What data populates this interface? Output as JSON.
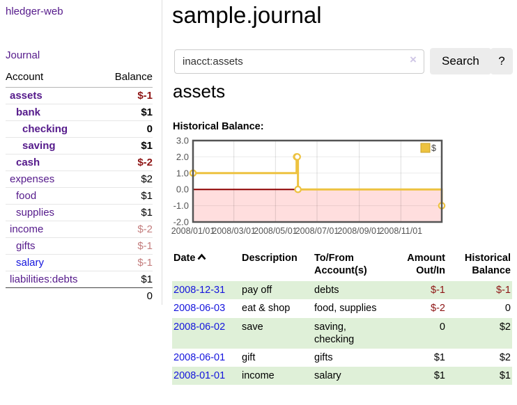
{
  "app": {
    "brand": "hledger-web",
    "nav_journal": "Journal"
  },
  "header": {
    "title": "sample.journal"
  },
  "search": {
    "value": "inacct:assets",
    "clear_icon": "×",
    "button_label": "Search",
    "help_label": "?"
  },
  "account_page": {
    "title": "assets",
    "chart_label": "Historical Balance:"
  },
  "sidebar": {
    "columns": {
      "account": "Account",
      "balance": "Balance"
    },
    "accounts": [
      {
        "name": "assets",
        "depth": 1,
        "bold": true,
        "balance": "$-1",
        "balance_style": "neg"
      },
      {
        "name": "bank",
        "depth": 2,
        "bold": true,
        "balance": "$1",
        "balance_style": "pos"
      },
      {
        "name": "checking",
        "depth": 3,
        "bold": true,
        "balance": "0",
        "balance_style": "pos"
      },
      {
        "name": "saving",
        "depth": 3,
        "bold": true,
        "balance": "$1",
        "balance_style": "pos"
      },
      {
        "name": "cash",
        "depth": 2,
        "bold": true,
        "balance": "$-2",
        "balance_style": "neg"
      },
      {
        "name": "expenses",
        "depth": 1,
        "bold": false,
        "balance": "$2",
        "balance_style": "pos"
      },
      {
        "name": "food",
        "depth": 2,
        "bold": false,
        "balance": "$1",
        "balance_style": "pos"
      },
      {
        "name": "supplies",
        "depth": 2,
        "bold": false,
        "balance": "$1",
        "balance_style": "pos"
      },
      {
        "name": "income",
        "depth": 1,
        "bold": false,
        "balance": "$-2",
        "balance_style": "neg-faded"
      },
      {
        "name": "gifts",
        "depth": 2,
        "bold": false,
        "balance": "$-1",
        "balance_style": "neg-faded"
      },
      {
        "name": "salary",
        "depth": 2,
        "bold": false,
        "balance": "$-1",
        "balance_style": "neg-faded",
        "link_style": "blue"
      },
      {
        "name": "liabilities:debts",
        "depth": 1,
        "bold": false,
        "balance": "$1",
        "balance_style": "pos"
      }
    ],
    "total": "0"
  },
  "chart_data": {
    "type": "line",
    "step": true,
    "title": "Historical Balance:",
    "series": [
      {
        "name": "$",
        "color": "#edc240",
        "points": [
          [
            "2008-01-01",
            1.0
          ],
          [
            "2008-06-01",
            2.0
          ],
          [
            "2008-06-02",
            2.0
          ],
          [
            "2008-06-03",
            0.0
          ],
          [
            "2008-12-31",
            -1.0
          ]
        ]
      }
    ],
    "xlim": [
      "2008-01-01",
      "2008-12-31"
    ],
    "ylim": [
      -2.0,
      3.0
    ],
    "x_ticks": [
      {
        "pos": "2008-01-01",
        "label": "2008/01/01"
      },
      {
        "pos": "2008-03-01",
        "label": "2008/03/01"
      },
      {
        "pos": "2008-05-01",
        "label": "2008/05/01"
      },
      {
        "pos": "2008-07-01",
        "label": "2008/07/01"
      },
      {
        "pos": "2008-09-01",
        "label": "2008/09/01"
      },
      {
        "pos": "2008-11-01",
        "label": "2008/11/01"
      }
    ],
    "y_ticks": [
      {
        "value": 3.0,
        "label": "3.0"
      },
      {
        "value": 2.0,
        "label": "2.0"
      },
      {
        "value": 1.0,
        "label": "1.0"
      },
      {
        "value": 0.0,
        "label": "0.0"
      },
      {
        "value": -1.0,
        "label": "-1.0"
      },
      {
        "value": -2.0,
        "label": "-2.0"
      }
    ],
    "legend": {
      "label": "$",
      "position": "top-right"
    },
    "grid": true,
    "negative_region_color": "#ffdede",
    "zero_line_color": "#8e0000",
    "border_color": "#545454",
    "tick_text_color": "#545454"
  },
  "register": {
    "columns": [
      "Date",
      "Description",
      "To/From Account(s)",
      "Amount Out/In",
      "Historical Balance"
    ],
    "sort_column": "Date",
    "sort_direction": "ascending",
    "rows": [
      {
        "date": "2008-12-31",
        "description": "pay off",
        "accounts": "debts",
        "amount": "$-1",
        "amount_neg": true,
        "balance": "$-1",
        "balance_neg": true
      },
      {
        "date": "2008-06-03",
        "description": "eat & shop",
        "accounts": "food, supplies",
        "amount": "$-2",
        "amount_neg": true,
        "balance": "0",
        "balance_neg": false
      },
      {
        "date": "2008-06-02",
        "description": "save",
        "accounts": "saving, checking",
        "amount": "0",
        "amount_neg": false,
        "balance": "$2",
        "balance_neg": false
      },
      {
        "date": "2008-06-01",
        "description": "gift",
        "accounts": "gifts",
        "amount": "$1",
        "amount_neg": false,
        "balance": "$2",
        "balance_neg": false
      },
      {
        "date": "2008-01-01",
        "description": "income",
        "accounts": "salary",
        "amount": "$1",
        "amount_neg": false,
        "balance": "$1",
        "balance_neg": false
      }
    ]
  },
  "colors": {
    "link_purple": "#551a8b",
    "link_blue": "#1414dd",
    "negative_strong": "#8e1414",
    "negative_faded": "#c47e7e",
    "row_green": "#dff0d8",
    "button_bg": "#ececec",
    "series_yellow": "#edc240"
  }
}
